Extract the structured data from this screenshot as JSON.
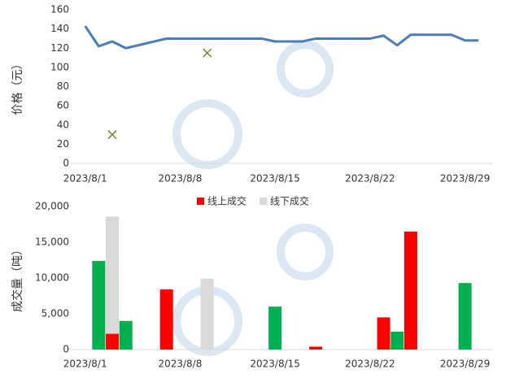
{
  "chart_data": [
    {
      "type": "line",
      "y_label": "价格（元）",
      "xlim": [
        "2023/7/31",
        "2023/8/31"
      ],
      "xticks": [
        "2023/8/1",
        "2023/8/8",
        "2023/8/15",
        "2023/8/22",
        "2023/8/29"
      ],
      "ylim": [
        0,
        160
      ],
      "yticks": [
        0,
        20,
        40,
        60,
        80,
        100,
        120,
        140,
        160
      ],
      "grid": false,
      "series": [
        {
          "type": "line",
          "color": "#4a7ebb",
          "x": [
            "2023/8/1",
            "2023/8/2",
            "2023/8/3",
            "2023/8/4",
            "2023/8/7",
            "2023/8/8",
            "2023/8/9",
            "2023/8/10",
            "2023/8/11",
            "2023/8/14",
            "2023/8/15",
            "2023/8/16",
            "2023/8/17",
            "2023/8/18",
            "2023/8/21",
            "2023/8/22",
            "2023/8/23",
            "2023/8/24",
            "2023/8/25",
            "2023/8/28",
            "2023/8/29",
            "2023/8/30"
          ],
          "values": [
            143,
            122,
            127,
            120,
            130,
            130,
            130,
            130,
            130,
            130,
            127,
            127,
            127,
            130,
            130,
            130,
            133,
            123,
            134,
            134,
            128,
            128
          ]
        },
        {
          "type": "scatter",
          "color": "#7f7f3f",
          "x": [
            "2023/8/3",
            "2023/8/10"
          ],
          "values": [
            30,
            115
          ]
        }
      ]
    },
    {
      "type": "bar",
      "y_label": "成交量（吨）",
      "xlim": [
        "2023/7/31",
        "2023/8/31"
      ],
      "xticks": [
        "2023/8/1",
        "2023/8/8",
        "2023/8/15",
        "2023/8/22",
        "2023/8/29"
      ],
      "ylim": [
        0,
        20000
      ],
      "yticks": [
        {
          "value": 0,
          "label": "0"
        },
        {
          "value": 5000,
          "label": "5,000"
        },
        {
          "value": 10000,
          "label": "10,000"
        },
        {
          "value": 15000,
          "label": "15,000"
        },
        {
          "value": 20000,
          "label": "20,000"
        }
      ],
      "grid": false,
      "legend": "top",
      "series": [
        {
          "color": "#00b050",
          "x": [
            "2023/8/2",
            "2023/8/4",
            "2023/8/15",
            "2023/8/24",
            "2023/8/29"
          ],
          "values": [
            12400,
            4000,
            6000,
            2500,
            9300
          ]
        },
        {
          "name": "线下成交",
          "color": "#d9d9d9",
          "x": [
            "2023/8/3",
            "2023/8/10"
          ],
          "values": [
            18600,
            9900
          ]
        },
        {
          "name": "线上成交",
          "color": "#ff0000",
          "x": [
            "2023/8/3",
            "2023/8/7",
            "2023/8/18",
            "2023/8/23",
            "2023/8/25"
          ],
          "values": [
            2200,
            8400,
            400,
            4500,
            16500
          ]
        }
      ]
    }
  ]
}
